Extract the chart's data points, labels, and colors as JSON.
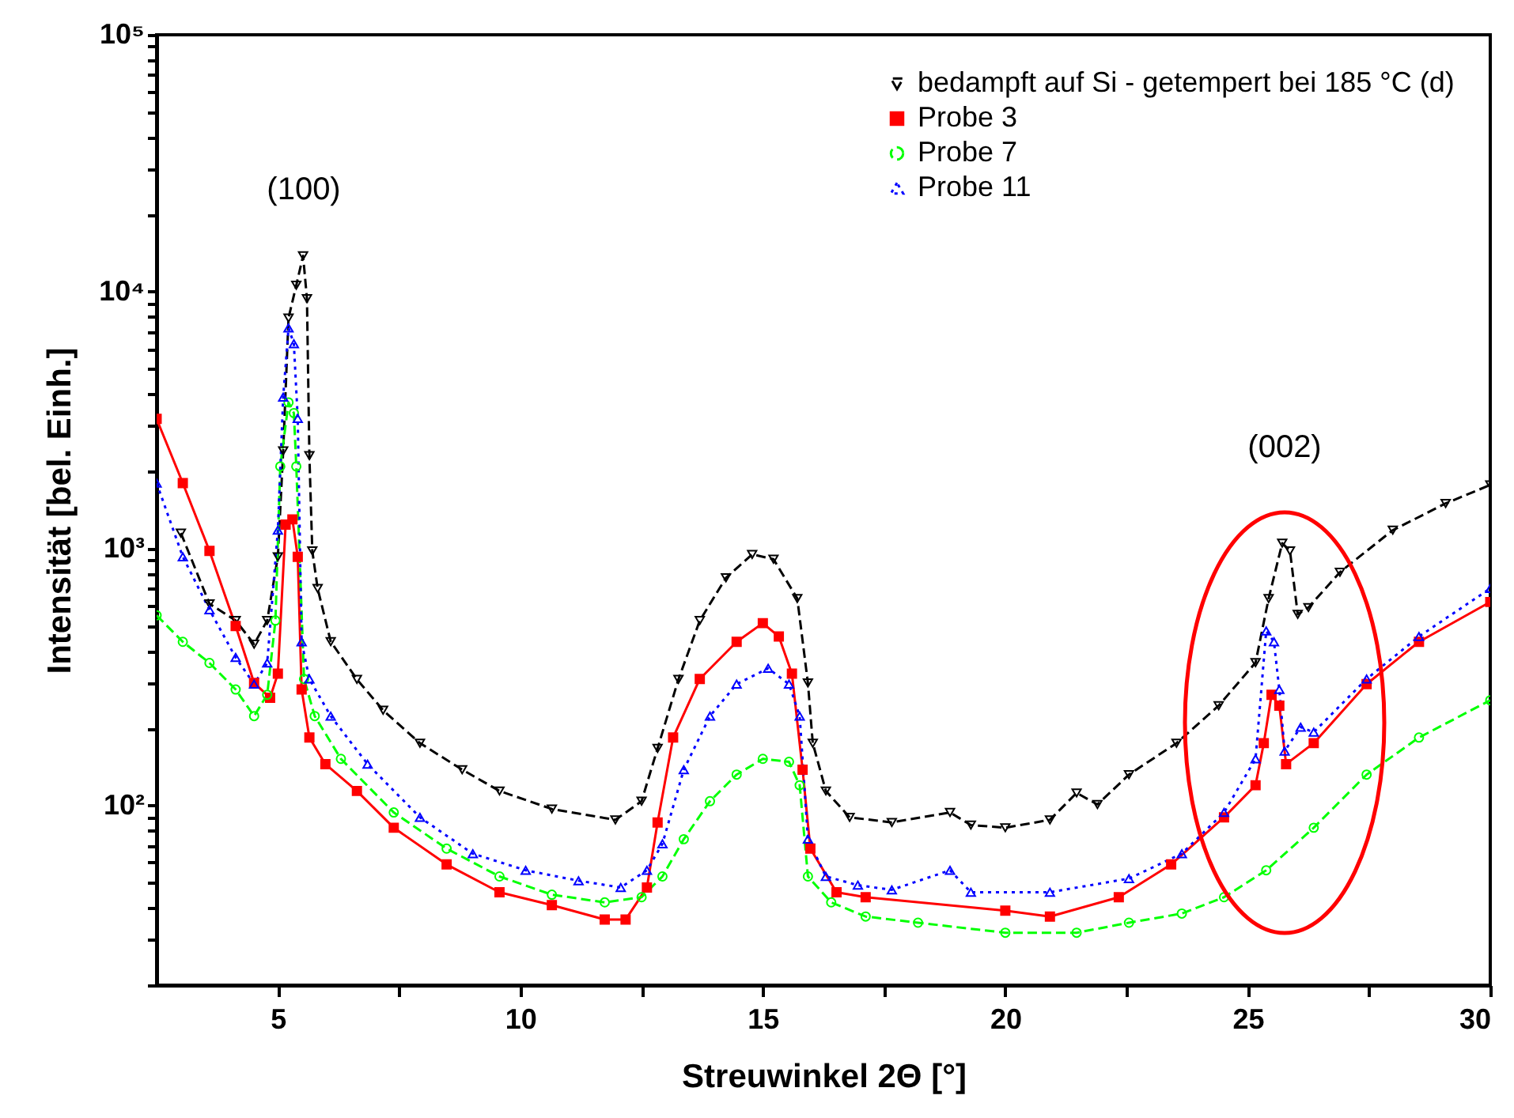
{
  "chart_data": {
    "type": "line",
    "xlabel": "Streuwinkel 2Θ [°]",
    "ylabel": "Intensität [bel. Einh.]",
    "xlim": [
      2.5,
      30
    ],
    "xticks": [
      5,
      {
        "value": 7.5,
        "label": null
      },
      10,
      {
        "value": 12.5,
        "label": null
      },
      15,
      {
        "value": 17.5,
        "label": null
      },
      20,
      {
        "value": 22.5,
        "label": null
      },
      25,
      {
        "value": 27.5,
        "label": null
      },
      30
    ],
    "ylim": [
      20,
      100000
    ],
    "log": "y",
    "yticks": [
      {
        "value": 20,
        "label": null
      },
      {
        "value": 30,
        "label": null
      },
      {
        "value": 40,
        "label": null
      },
      {
        "value": 50,
        "label": null
      },
      {
        "value": 60,
        "label": null
      },
      {
        "value": 70,
        "label": null
      },
      {
        "value": 80,
        "label": null
      },
      {
        "value": 90,
        "label": null
      },
      {
        "value": 100,
        "label": "10²"
      },
      {
        "value": 200,
        "label": null
      },
      {
        "value": 300,
        "label": null
      },
      {
        "value": 400,
        "label": null
      },
      {
        "value": 500,
        "label": null
      },
      {
        "value": 600,
        "label": null
      },
      {
        "value": 700,
        "label": null
      },
      {
        "value": 800,
        "label": null
      },
      {
        "value": 900,
        "label": null
      },
      {
        "value": 1000,
        "label": "10³"
      },
      {
        "value": 2000,
        "label": null
      },
      {
        "value": 3000,
        "label": null
      },
      {
        "value": 4000,
        "label": null
      },
      {
        "value": 5000,
        "label": null
      },
      {
        "value": 6000,
        "label": null
      },
      {
        "value": 7000,
        "label": null
      },
      {
        "value": 8000,
        "label": null
      },
      {
        "value": 9000,
        "label": null
      },
      {
        "value": 10000,
        "label": "10⁴"
      },
      {
        "value": 20000,
        "label": null
      },
      {
        "value": 30000,
        "label": null
      },
      {
        "value": 40000,
        "label": null
      },
      {
        "value": 50000,
        "label": null
      },
      {
        "value": 60000,
        "label": null
      },
      {
        "value": 70000,
        "label": null
      },
      {
        "value": 80000,
        "label": null
      },
      {
        "value": 90000,
        "label": null
      },
      {
        "value": 100000,
        "label": "10⁵"
      }
    ],
    "grid": false,
    "legend": "top right",
    "annotations": [
      "(100)",
      "(002)"
    ],
    "series": [
      {
        "name": "bedampft auf Si - getempert bei 185 °C (d)",
        "color": "#000000",
        "marker": "triangle-down",
        "line_style": "dashed",
        "x": [
          3.0,
          3.59,
          4.13,
          4.51,
          4.78,
          5.0,
          5.11,
          5.22,
          5.38,
          5.52,
          5.6,
          5.65,
          5.71,
          5.82,
          6.09,
          6.63,
          7.17,
          7.93,
          8.8,
          9.57,
          10.65,
          11.96,
          12.5,
          12.83,
          13.26,
          13.7,
          14.24,
          14.78,
          15.22,
          15.71,
          15.93,
          16.03,
          16.3,
          16.79,
          17.66,
          18.86,
          19.29,
          20,
          20.92,
          21.47,
          21.9,
          22.55,
          23.53,
          24.4,
          25.16,
          25.43,
          25.71,
          25.87,
          26.03,
          26.25,
          26.9,
          27.99,
          29.08,
          30
        ],
        "values": [
          1150,
          610,
          525,
          425,
          525,
          930,
          2400,
          7900,
          10600,
          13800,
          9400,
          2300,
          980,
          700,
          435,
          310,
          235,
          175,
          138,
          114,
          97,
          88,
          104,
          167,
          310,
          525,
          770,
          950,
          910,
          640,
          300,
          175,
          114,
          90,
          86,
          94,
          84,
          82,
          88,
          112,
          101,
          132,
          175,
          245,
          360,
          640,
          1050,
          980,
          555,
          590,
          810,
          1180,
          1500,
          1770
        ]
      },
      {
        "name": "Probe 3",
        "color": "#ff0000",
        "marker": "square",
        "line_style": "solid",
        "x": [
          2.5,
          3.04,
          3.59,
          4.13,
          4.51,
          4.84,
          5.0,
          5.16,
          5.3,
          5.41,
          5.49,
          5.65,
          5.98,
          6.63,
          7.39,
          8.48,
          9.57,
          10.65,
          11.74,
          12.17,
          12.61,
          12.83,
          13.15,
          13.7,
          14.46,
          15.0,
          15.33,
          15.6,
          15.82,
          15.98,
          16.52,
          17.12,
          20,
          20.92,
          22.34,
          23.42,
          24.51,
          25.16,
          25.33,
          25.49,
          25.65,
          25.79,
          26.36,
          27.45,
          28.53,
          30
        ],
        "values": [
          3200,
          1800,
          980,
          500,
          300,
          263,
          326,
          1240,
          1300,
          930,
          283,
          184,
          145,
          114,
          82,
          59,
          46,
          41,
          36,
          36,
          48,
          86,
          184,
          311,
          434,
          513,
          455,
          326,
          138,
          68,
          46,
          44,
          39,
          37,
          44,
          59,
          90,
          120,
          175,
          270,
          245,
          145,
          175,
          297,
          434,
          620
        ]
      },
      {
        "name": "Probe 7",
        "color": "#00ff00",
        "marker": "circle",
        "line_style": "dashed",
        "x": [
          2.5,
          3.04,
          3.59,
          4.13,
          4.51,
          4.78,
          4.95,
          5.05,
          5.22,
          5.33,
          5.38,
          5.54,
          5.76,
          6.3,
          7.39,
          8.48,
          9.57,
          10.65,
          11.74,
          12.5,
          12.93,
          13.37,
          13.91,
          14.46,
          15.0,
          15.54,
          15.76,
          15.93,
          16.41,
          17.12,
          18.2,
          20,
          21.47,
          22.55,
          23.64,
          24.51,
          25.38,
          26.36,
          27.45,
          28.53,
          30
        ],
        "values": [
          550,
          434,
          359,
          283,
          223,
          270,
          525,
          2090,
          3710,
          3370,
          2090,
          311,
          223,
          152,
          94,
          68,
          53,
          45,
          42,
          44,
          53,
          74,
          104,
          132,
          152,
          148,
          120,
          53,
          42,
          37,
          35,
          32,
          32,
          35,
          38,
          44,
          56,
          82,
          132,
          184,
          257
        ]
      },
      {
        "name": "Probe 11",
        "color": "#0000ff",
        "marker": "triangle",
        "line_style": "dotted",
        "x": [
          2.5,
          3.04,
          3.59,
          4.13,
          4.51,
          4.78,
          5.0,
          5.11,
          5.22,
          5.33,
          5.41,
          5.49,
          5.65,
          6.09,
          6.85,
          7.93,
          9.02,
          10.11,
          11.2,
          12.07,
          12.61,
          12.93,
          13.37,
          13.91,
          14.46,
          15.11,
          15.54,
          15.76,
          15.93,
          16.3,
          16.96,
          17.66,
          18.86,
          19.29,
          20.92,
          22.55,
          23.64,
          24.51,
          25.16,
          25.38,
          25.54,
          25.65,
          25.76,
          26.09,
          26.36,
          27.45,
          28.53,
          30
        ],
        "values": [
          1800,
          930,
          578,
          377,
          297,
          359,
          1180,
          3890,
          7230,
          6270,
          3210,
          434,
          311,
          223,
          145,
          90,
          65,
          56,
          51,
          48,
          56,
          71,
          138,
          223,
          297,
          342,
          297,
          223,
          74,
          53,
          49,
          47,
          56,
          46,
          46,
          52,
          65,
          94,
          152,
          478,
          434,
          283,
          163,
          202,
          193,
          311,
          455,
          700
        ]
      }
    ]
  }
}
